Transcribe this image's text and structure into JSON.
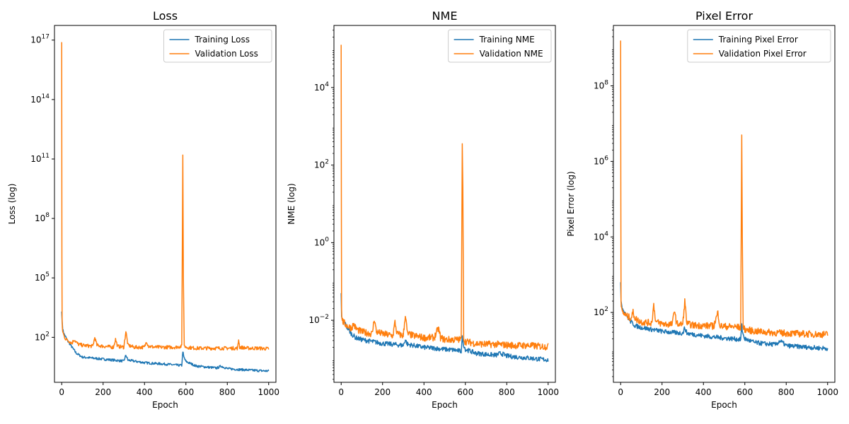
{
  "chart_data": [
    {
      "type": "line",
      "title": "Loss",
      "xlabel": "Epoch",
      "ylabel": "Loss (log)",
      "yscale": "log",
      "xlim": [
        -35,
        1035
      ],
      "ylim_exp": [
        -0.27,
        17.74
      ],
      "xticks": [
        {
          "v": 0,
          "t": "0"
        },
        {
          "v": 200,
          "t": "200"
        },
        {
          "v": 400,
          "t": "400"
        },
        {
          "v": 600,
          "t": "600"
        },
        {
          "v": 800,
          "t": "800"
        },
        {
          "v": 1000,
          "t": "1000"
        }
      ],
      "yticks": [
        {
          "e": 2,
          "b": "10",
          "x": "2"
        },
        {
          "e": 5,
          "b": "10",
          "x": "5"
        },
        {
          "e": 8,
          "b": "10",
          "x": "8"
        },
        {
          "e": 11,
          "b": "10",
          "x": "11"
        },
        {
          "e": 14,
          "b": "10",
          "x": "14"
        },
        {
          "e": 17,
          "b": "10",
          "x": "17"
        }
      ],
      "legend": "upper right",
      "legend_entries": [
        "Training Loss",
        "Validation Loss"
      ],
      "colors": [
        "#1f77b4",
        "#ff7f0e"
      ],
      "series": [
        {
          "name": "Training Loss",
          "x": [
            0,
            2,
            5,
            10,
            20,
            30,
            50,
            70,
            100,
            150,
            200,
            250,
            300,
            310,
            320,
            350,
            400,
            450,
            500,
            550,
            580,
            585,
            590,
            600,
            650,
            700,
            750,
            770,
            800,
            850,
            900,
            950,
            1000
          ],
          "log_y": [
            3.3,
            2.8,
            2.4,
            2.2,
            2.0,
            1.8,
            1.5,
            1.2,
            1.0,
            0.95,
            0.9,
            0.85,
            0.8,
            1.1,
            0.85,
            0.8,
            0.72,
            0.68,
            0.65,
            0.6,
            0.58,
            1.3,
            1.0,
            0.78,
            0.55,
            0.5,
            0.45,
            0.55,
            0.42,
            0.38,
            0.35,
            0.32,
            0.3
          ]
        },
        {
          "name": "Validation Loss",
          "x": [
            0,
            1,
            2,
            3,
            5,
            10,
            20,
            30,
            50,
            60,
            70,
            80,
            100,
            150,
            160,
            170,
            200,
            250,
            260,
            270,
            300,
            310,
            320,
            350,
            400,
            410,
            420,
            450,
            500,
            550,
            580,
            585,
            588,
            592,
            600,
            650,
            700,
            750,
            800,
            850,
            855,
            860,
            900,
            950,
            1000
          ],
          "log_y": [
            16.9,
            6.0,
            3.0,
            2.5,
            2.3,
            2.1,
            1.9,
            1.85,
            1.7,
            1.9,
            1.75,
            1.65,
            1.6,
            1.55,
            2.0,
            1.6,
            1.55,
            1.5,
            1.9,
            1.55,
            1.5,
            2.3,
            1.6,
            1.5,
            1.5,
            1.8,
            1.55,
            1.5,
            1.5,
            1.5,
            1.55,
            11.2,
            5.0,
            1.6,
            1.5,
            1.45,
            1.45,
            1.45,
            1.45,
            1.45,
            1.9,
            1.5,
            1.45,
            1.45,
            1.42
          ]
        }
      ]
    },
    {
      "type": "line",
      "title": "NME",
      "xlabel": "Epoch",
      "ylabel": "NME (log)",
      "yscale": "log",
      "xlim": [
        -35,
        1035
      ],
      "ylim_exp": [
        -3.6,
        5.6
      ],
      "xticks": [
        {
          "v": 0,
          "t": "0"
        },
        {
          "v": 200,
          "t": "200"
        },
        {
          "v": 400,
          "t": "400"
        },
        {
          "v": 600,
          "t": "600"
        },
        {
          "v": 800,
          "t": "800"
        },
        {
          "v": 1000,
          "t": "1000"
        }
      ],
      "yticks": [
        {
          "e": -2,
          "b": "10",
          "x": "−2"
        },
        {
          "e": 0,
          "b": "10",
          "x": "0"
        },
        {
          "e": 2,
          "b": "10",
          "x": "2"
        },
        {
          "e": 4,
          "b": "10",
          "x": "4"
        }
      ],
      "legend": "upper right",
      "legend_entries": [
        "Training NME",
        "Validation NME"
      ],
      "colors": [
        "#1f77b4",
        "#ff7f0e"
      ],
      "series": [
        {
          "name": "Training NME",
          "x": [
            0,
            2,
            5,
            10,
            20,
            30,
            50,
            70,
            100,
            150,
            200,
            250,
            300,
            310,
            320,
            350,
            400,
            450,
            500,
            550,
            580,
            585,
            590,
            600,
            650,
            700,
            750,
            770,
            800,
            850,
            900,
            950,
            1000
          ],
          "log_y": [
            -1.3,
            -1.9,
            -2.0,
            -2.05,
            -2.1,
            -2.2,
            -2.35,
            -2.45,
            -2.5,
            -2.55,
            -2.6,
            -2.62,
            -2.65,
            -2.5,
            -2.62,
            -2.65,
            -2.7,
            -2.72,
            -2.75,
            -2.77,
            -2.8,
            -2.45,
            -2.6,
            -2.75,
            -2.85,
            -2.88,
            -2.9,
            -2.85,
            -2.92,
            -2.95,
            -2.97,
            -3.0,
            -3.02
          ]
        },
        {
          "name": "Validation NME",
          "x": [
            0,
            1,
            2,
            3,
            5,
            10,
            20,
            30,
            50,
            60,
            70,
            80,
            100,
            150,
            160,
            170,
            200,
            250,
            260,
            270,
            300,
            310,
            320,
            350,
            400,
            450,
            470,
            480,
            500,
            550,
            580,
            585,
            588,
            592,
            600,
            650,
            700,
            750,
            800,
            850,
            900,
            950,
            1000
          ],
          "log_y": [
            5.1,
            1.0,
            -1.7,
            -1.9,
            -2.0,
            -2.05,
            -2.1,
            -2.15,
            -2.2,
            -2.1,
            -2.2,
            -2.25,
            -2.3,
            -2.35,
            -1.95,
            -2.3,
            -2.35,
            -2.4,
            -2.05,
            -2.35,
            -2.4,
            -1.85,
            -2.35,
            -2.4,
            -2.45,
            -2.45,
            -2.2,
            -2.45,
            -2.5,
            -2.5,
            -2.5,
            2.55,
            1.5,
            -2.5,
            -2.55,
            -2.6,
            -2.62,
            -2.62,
            -2.64,
            -2.65,
            -2.65,
            -2.67,
            -2.68
          ]
        }
      ]
    },
    {
      "type": "line",
      "title": "Pixel Error",
      "xlabel": "Epoch",
      "ylabel": "Pixel Error (log)",
      "yscale": "log",
      "xlim": [
        -35,
        1035
      ],
      "ylim_exp": [
        0.15,
        9.6
      ],
      "xticks": [
        {
          "v": 0,
          "t": "0"
        },
        {
          "v": 200,
          "t": "200"
        },
        {
          "v": 400,
          "t": "400"
        },
        {
          "v": 600,
          "t": "600"
        },
        {
          "v": 800,
          "t": "800"
        },
        {
          "v": 1000,
          "t": "1000"
        }
      ],
      "yticks": [
        {
          "e": 2,
          "b": "10",
          "x": "2"
        },
        {
          "e": 4,
          "b": "10",
          "x": "4"
        },
        {
          "e": 6,
          "b": "10",
          "x": "6"
        },
        {
          "e": 8,
          "b": "10",
          "x": "8"
        }
      ],
      "legend": "upper right",
      "legend_entries": [
        "Training Pixel Error",
        "Validation Pixel Error"
      ],
      "colors": [
        "#1f77b4",
        "#ff7f0e"
      ],
      "series": [
        {
          "name": "Training Pixel Error",
          "x": [
            0,
            2,
            5,
            10,
            20,
            30,
            50,
            70,
            100,
            150,
            200,
            250,
            300,
            310,
            320,
            350,
            400,
            450,
            500,
            550,
            580,
            585,
            590,
            600,
            650,
            700,
            750,
            770,
            800,
            850,
            900,
            950,
            1000
          ],
          "log_y": [
            2.8,
            2.3,
            2.2,
            2.1,
            2.0,
            1.9,
            1.75,
            1.65,
            1.6,
            1.55,
            1.5,
            1.47,
            1.45,
            1.6,
            1.45,
            1.42,
            1.38,
            1.35,
            1.32,
            1.3,
            1.28,
            1.65,
            1.45,
            1.3,
            1.2,
            1.17,
            1.15,
            1.25,
            1.12,
            1.1,
            1.08,
            1.06,
            1.05
          ]
        },
        {
          "name": "Validation Pixel Error",
          "x": [
            0,
            1,
            2,
            3,
            5,
            10,
            20,
            30,
            50,
            60,
            70,
            80,
            100,
            150,
            160,
            170,
            200,
            250,
            260,
            270,
            300,
            310,
            320,
            350,
            400,
            450,
            470,
            480,
            500,
            550,
            580,
            585,
            588,
            592,
            600,
            650,
            700,
            750,
            800,
            850,
            900,
            950,
            1000
          ],
          "log_y": [
            9.2,
            5.0,
            2.3,
            2.15,
            2.05,
            2.0,
            1.95,
            1.9,
            1.85,
            2.0,
            1.85,
            1.8,
            1.75,
            1.72,
            2.2,
            1.75,
            1.7,
            1.68,
            2.1,
            1.7,
            1.68,
            2.3,
            1.7,
            1.66,
            1.65,
            1.64,
            2.0,
            1.64,
            1.63,
            1.62,
            1.6,
            6.7,
            4.0,
            1.6,
            1.55,
            1.5,
            1.48,
            1.46,
            1.45,
            1.44,
            1.43,
            1.42,
            1.42
          ]
        }
      ]
    }
  ]
}
